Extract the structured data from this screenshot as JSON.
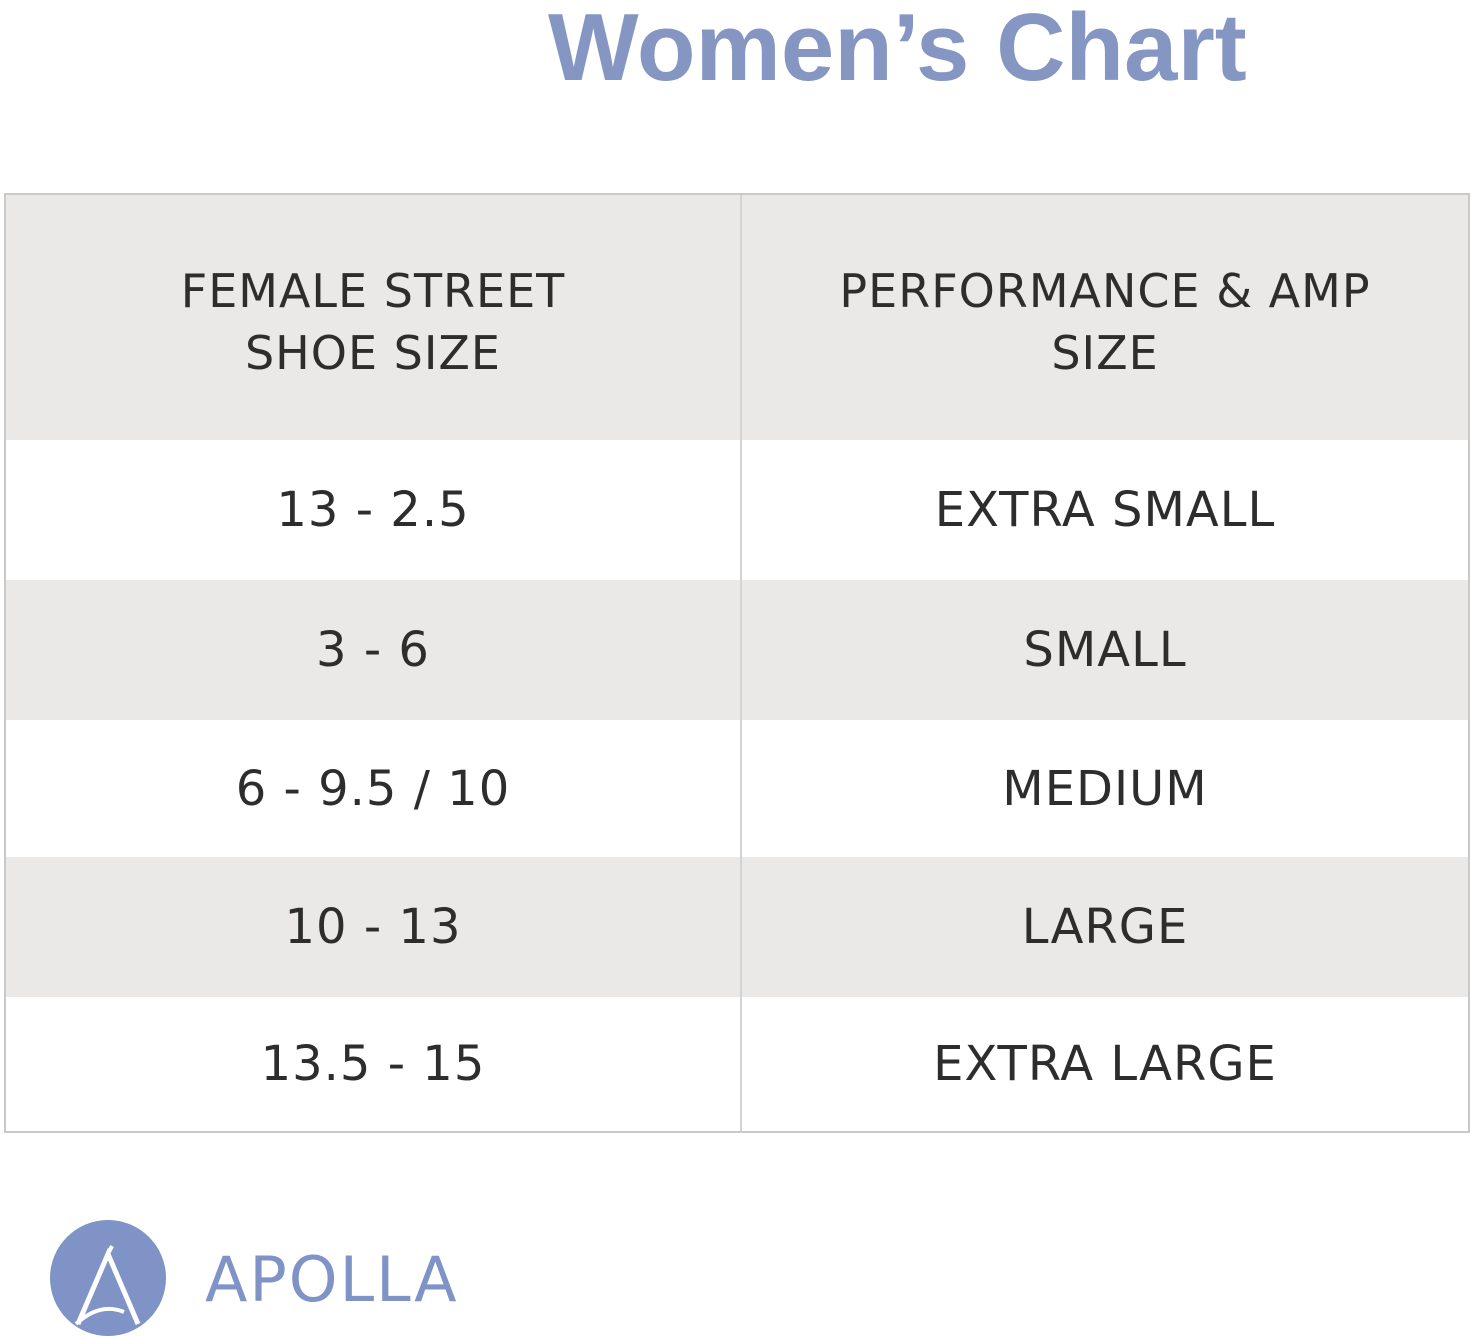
{
  "title": "Women’s Chart",
  "table": {
    "header": {
      "col1": "FEMALE STREET\nSHOE SIZE",
      "col1_line1": "FEMALE STREET",
      "col1_line2": "SHOE SIZE",
      "col2_line1": "PERFORMANCE & AMP",
      "col2_line2": "SIZE"
    },
    "rows": [
      {
        "shoe_size": "13 - 2.5",
        "performance_size": "EXTRA SMALL"
      },
      {
        "shoe_size": "3 - 6",
        "performance_size": "SMALL"
      },
      {
        "shoe_size": "6 - 9.5 /  10",
        "performance_size": "MEDIUM"
      },
      {
        "shoe_size": "10 - 13",
        "performance_size": "LARGE"
      },
      {
        "shoe_size": "13.5 - 15",
        "performance_size": "EXTRA LARGE"
      }
    ]
  },
  "brand": {
    "logo_letter": "A",
    "name": "APOLLA"
  },
  "colors": {
    "accent": "#8596c2",
    "shaded_row": "#ebe9e7",
    "text": "#2d2d2d"
  }
}
